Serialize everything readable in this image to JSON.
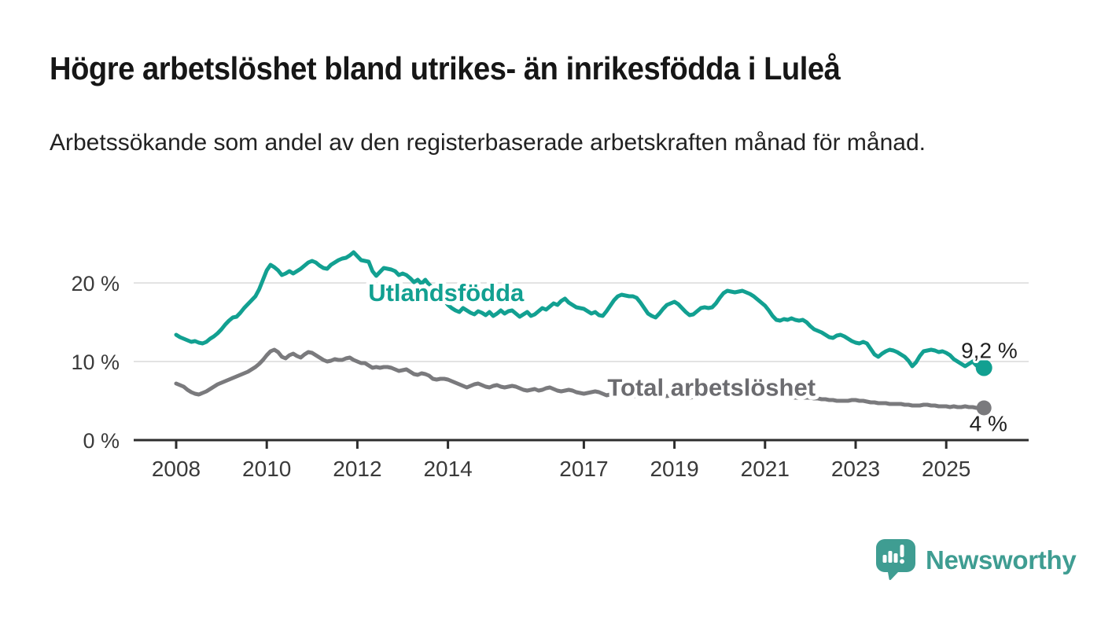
{
  "header": {
    "title": "Högre arbetslöshet bland utrikes- än inrikesfödda i Luleå",
    "subtitle": "Arbetssökande som andel av den registerbaserade arbetskraften månad för månad."
  },
  "branding": {
    "wordmark": "Newsworthy",
    "color": "#3f9d92",
    "icon": "speech-bubble-bar-chart-icon"
  },
  "chart_data": {
    "type": "line",
    "title": "Högre arbetslöshet bland utrikes- än inrikesfödda i Luleå",
    "subtitle": "Arbetssökande som andel av den registerbaserade arbetskraften månad för månad.",
    "unit": "%",
    "grid": "horizontal",
    "grid_color": "#dadada",
    "axis_color": "#2d2d2d",
    "tick_text_color": "#3a3a3a",
    "annotation_text_color": "#1f1f1f",
    "x_axis": {
      "unit": "year",
      "ticks": [
        {
          "year": 2008,
          "label": "2008"
        },
        {
          "year": 2010,
          "label": "2010"
        },
        {
          "year": 2012,
          "label": "2012"
        },
        {
          "year": 2014,
          "label": "2014"
        },
        {
          "year": 2017,
          "label": "2017"
        },
        {
          "year": 2019,
          "label": "2019"
        },
        {
          "year": 2021,
          "label": "2021"
        },
        {
          "year": 2023,
          "label": "2023"
        },
        {
          "year": 2025,
          "label": "2025"
        }
      ]
    },
    "y_axis": {
      "range": [
        0,
        26
      ],
      "ticks": [
        {
          "value": 0,
          "label": "0 %"
        },
        {
          "value": 10,
          "label": "10 %"
        },
        {
          "value": 20,
          "label": "20 %"
        }
      ]
    },
    "series": [
      {
        "id": "utlandsfodda",
        "name": "Utlandsfödda",
        "color": "#12a091",
        "label_color": "#12a091",
        "line_width": 5,
        "end_dot_radius": 10.5,
        "label_anchor": {
          "year": 2012.24,
          "pct": 17.7
        },
        "end_annotation": {
          "text": "9,2 %",
          "year": 2025.95,
          "pct": 10.45
        },
        "end_value": 9.2,
        "start_year": 2008.0,
        "step_months": 1,
        "values": [
          13.4,
          13.1,
          12.9,
          12.7,
          12.5,
          12.6,
          12.4,
          12.3,
          12.5,
          12.9,
          13.2,
          13.6,
          14.1,
          14.7,
          15.2,
          15.6,
          15.7,
          16.2,
          16.8,
          17.3,
          17.8,
          18.3,
          19.2,
          20.4,
          21.6,
          22.3,
          22.0,
          21.6,
          21.0,
          21.2,
          21.5,
          21.2,
          21.5,
          21.8,
          22.2,
          22.6,
          22.8,
          22.6,
          22.2,
          21.9,
          21.8,
          22.3,
          22.6,
          22.9,
          23.1,
          23.2,
          23.5,
          23.9,
          23.4,
          22.9,
          22.8,
          22.7,
          21.5,
          20.9,
          21.4,
          21.9,
          21.8,
          21.7,
          21.5,
          21.0,
          21.2,
          21.0,
          20.6,
          20.1,
          20.4,
          19.9,
          20.4,
          19.8,
          19.4,
          19.0,
          18.5,
          17.8,
          17.2,
          16.8,
          16.5,
          16.3,
          16.8,
          16.5,
          16.2,
          16.0,
          16.4,
          16.2,
          15.9,
          16.3,
          15.8,
          16.1,
          16.5,
          16.1,
          16.4,
          16.5,
          16.1,
          15.7,
          16.0,
          16.3,
          15.8,
          16.0,
          16.4,
          16.8,
          16.6,
          17.0,
          17.4,
          17.2,
          17.7,
          18.0,
          17.5,
          17.2,
          16.9,
          16.8,
          16.7,
          16.4,
          16.1,
          16.3,
          15.9,
          15.8,
          16.4,
          17.1,
          17.8,
          18.3,
          18.5,
          18.4,
          18.3,
          18.3,
          18.1,
          17.5,
          16.8,
          16.1,
          15.8,
          15.6,
          16.1,
          16.7,
          17.2,
          17.4,
          17.6,
          17.3,
          16.8,
          16.3,
          15.9,
          16.0,
          16.4,
          16.8,
          16.9,
          16.8,
          16.9,
          17.4,
          18.1,
          18.7,
          19.0,
          18.9,
          18.8,
          18.9,
          19.0,
          18.8,
          18.6,
          18.3,
          17.9,
          17.5,
          17.1,
          16.5,
          15.8,
          15.3,
          15.2,
          15.4,
          15.3,
          15.5,
          15.3,
          15.2,
          15.3,
          15.0,
          14.5,
          14.1,
          13.9,
          13.7,
          13.4,
          13.1,
          13.0,
          13.3,
          13.4,
          13.2,
          12.9,
          12.6,
          12.4,
          12.3,
          12.5,
          12.3,
          11.6,
          10.9,
          10.6,
          11.0,
          11.3,
          11.5,
          11.4,
          11.2,
          10.9,
          10.6,
          10.1,
          9.4,
          9.9,
          10.7,
          11.3,
          11.4,
          11.5,
          11.4,
          11.2,
          11.3,
          11.1,
          10.8,
          10.3,
          10.0,
          9.7,
          9.4,
          9.7,
          10.0,
          9.5,
          9.3,
          9.2
        ]
      },
      {
        "id": "total-arbetsloshet",
        "name": "Total arbetslöshet",
        "color": "#7a7a7d",
        "label_color": "#6c6c70",
        "line_width": 5,
        "end_dot_radius": 9.5,
        "label_anchor": {
          "year": 2017.52,
          "pct": 5.65
        },
        "end_annotation": {
          "text": "4 %",
          "year": 2025.93,
          "pct": 1.15
        },
        "end_value": 4.0,
        "start_year": 2008.0,
        "step_months": 1,
        "values": [
          7.2,
          7.0,
          6.8,
          6.4,
          6.1,
          5.9,
          5.8,
          6.0,
          6.2,
          6.5,
          6.8,
          7.1,
          7.3,
          7.5,
          7.7,
          7.9,
          8.1,
          8.3,
          8.5,
          8.7,
          9.0,
          9.3,
          9.7,
          10.2,
          10.8,
          11.3,
          11.5,
          11.2,
          10.6,
          10.4,
          10.8,
          11.0,
          10.7,
          10.5,
          10.9,
          11.2,
          11.1,
          10.8,
          10.5,
          10.2,
          10.0,
          10.1,
          10.3,
          10.2,
          10.2,
          10.4,
          10.5,
          10.2,
          10.0,
          9.8,
          9.8,
          9.5,
          9.2,
          9.3,
          9.2,
          9.3,
          9.3,
          9.2,
          9.0,
          8.8,
          8.9,
          9.0,
          8.7,
          8.4,
          8.3,
          8.5,
          8.4,
          8.2,
          7.8,
          7.7,
          7.8,
          7.8,
          7.7,
          7.5,
          7.3,
          7.1,
          6.9,
          6.7,
          6.9,
          7.1,
          7.2,
          7.0,
          6.8,
          6.7,
          6.9,
          7.0,
          6.8,
          6.7,
          6.8,
          6.9,
          6.8,
          6.6,
          6.4,
          6.3,
          6.4,
          6.5,
          6.3,
          6.4,
          6.6,
          6.7,
          6.5,
          6.3,
          6.2,
          6.3,
          6.4,
          6.3,
          6.1,
          6.0,
          5.9,
          6.0,
          6.1,
          6.2,
          6.1,
          5.9,
          5.7,
          5.8,
          5.9,
          5.9,
          5.8,
          5.8,
          5.7,
          5.6,
          5.6,
          5.5,
          5.5,
          5.6,
          5.6,
          5.7,
          5.7,
          5.6,
          5.6,
          5.7,
          5.7,
          5.6,
          5.5,
          5.4,
          5.4,
          5.5,
          5.5,
          5.6,
          5.6,
          5.7,
          5.8,
          5.9,
          6.0,
          6.1,
          6.2,
          6.3,
          6.3,
          6.3,
          6.2,
          6.2,
          6.1,
          6.1,
          6.0,
          6.0,
          5.9,
          5.8,
          5.7,
          5.7,
          5.6,
          5.6,
          5.5,
          5.5,
          5.4,
          5.4,
          5.4,
          5.4,
          5.4,
          5.3,
          5.3,
          5.2,
          5.2,
          5.1,
          5.1,
          5.0,
          5.0,
          5.0,
          5.0,
          5.1,
          5.1,
          5.0,
          5.0,
          4.9,
          4.8,
          4.8,
          4.7,
          4.7,
          4.7,
          4.6,
          4.6,
          4.6,
          4.6,
          4.5,
          4.5,
          4.4,
          4.4,
          4.4,
          4.5,
          4.5,
          4.4,
          4.4,
          4.3,
          4.3,
          4.3,
          4.2,
          4.3,
          4.2,
          4.2,
          4.3,
          4.2,
          4.2,
          4.1,
          4.1,
          4.1
        ]
      }
    ]
  }
}
